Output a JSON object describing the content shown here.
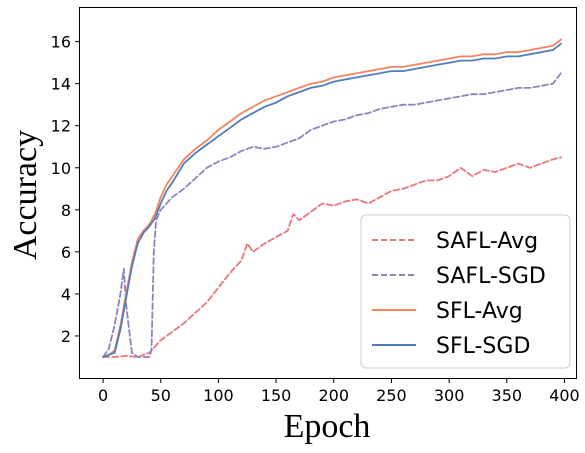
{
  "chart_data": {
    "type": "line",
    "xlabel": "Epoch",
    "ylabel": "Accuracy",
    "xlim": [
      -20,
      410
    ],
    "ylim": [
      0.0,
      17.6
    ],
    "xticks": [
      0,
      50,
      100,
      150,
      200,
      250,
      300,
      350,
      400
    ],
    "yticks": [
      2,
      4,
      6,
      8,
      10,
      12,
      14,
      16
    ],
    "grid": false,
    "legend_position": "lower-right",
    "series": [
      {
        "name": "SAFL-Avg",
        "color": "#e8777c",
        "dash": "dashed",
        "x": [
          0,
          10,
          20,
          30,
          40,
          45,
          50,
          60,
          70,
          80,
          90,
          100,
          110,
          120,
          125,
          130,
          140,
          150,
          160,
          165,
          170,
          180,
          190,
          200,
          210,
          220,
          230,
          240,
          250,
          260,
          270,
          280,
          290,
          300,
          310,
          320,
          330,
          340,
          350,
          360,
          370,
          380,
          390,
          397
        ],
        "y": [
          1.0,
          1.0,
          1.05,
          1.0,
          1.2,
          1.5,
          1.8,
          2.2,
          2.6,
          3.1,
          3.6,
          4.3,
          5.0,
          5.6,
          6.4,
          6.0,
          6.4,
          6.7,
          7.0,
          7.8,
          7.5,
          7.9,
          8.3,
          8.2,
          8.4,
          8.5,
          8.3,
          8.6,
          8.9,
          9.0,
          9.2,
          9.4,
          9.4,
          9.6,
          10.0,
          9.6,
          9.9,
          9.8,
          10.0,
          10.2,
          10.0,
          10.2,
          10.4,
          10.5
        ]
      },
      {
        "name": "SAFL-SGD",
        "color": "#8e84bd",
        "dash": "dashed",
        "x": [
          0,
          5,
          10,
          15,
          18,
          20,
          25,
          30,
          35,
          40,
          42,
          44,
          46,
          50,
          60,
          70,
          80,
          90,
          100,
          110,
          120,
          130,
          140,
          150,
          160,
          170,
          180,
          190,
          200,
          210,
          220,
          230,
          240,
          250,
          260,
          270,
          280,
          290,
          300,
          310,
          320,
          330,
          340,
          350,
          360,
          370,
          380,
          390,
          397
        ],
        "y": [
          1.0,
          1.4,
          2.5,
          4.0,
          5.2,
          3.5,
          1.2,
          1.0,
          1.0,
          1.0,
          1.3,
          6.0,
          7.5,
          8.0,
          8.6,
          9.0,
          9.5,
          10.0,
          10.3,
          10.5,
          10.8,
          11.0,
          10.9,
          11.0,
          11.2,
          11.4,
          11.8,
          12.0,
          12.2,
          12.3,
          12.5,
          12.6,
          12.8,
          12.9,
          13.0,
          13.0,
          13.1,
          13.2,
          13.3,
          13.4,
          13.5,
          13.5,
          13.6,
          13.7,
          13.8,
          13.8,
          13.9,
          14.0,
          14.5
        ]
      },
      {
        "name": "SFL-Avg",
        "color": "#f4845f",
        "dash": "solid",
        "x": [
          0,
          5,
          10,
          15,
          20,
          25,
          30,
          35,
          40,
          45,
          50,
          55,
          60,
          70,
          80,
          90,
          100,
          110,
          120,
          130,
          140,
          150,
          160,
          170,
          180,
          190,
          200,
          210,
          220,
          230,
          240,
          250,
          260,
          270,
          280,
          290,
          300,
          310,
          320,
          330,
          340,
          350,
          360,
          370,
          380,
          390,
          397
        ],
        "y": [
          1.0,
          1.1,
          1.3,
          2.5,
          4.0,
          5.5,
          6.6,
          7.0,
          7.3,
          7.8,
          8.6,
          9.2,
          9.6,
          10.4,
          10.9,
          11.3,
          11.8,
          12.2,
          12.6,
          12.9,
          13.2,
          13.4,
          13.6,
          13.8,
          14.0,
          14.1,
          14.3,
          14.4,
          14.5,
          14.6,
          14.7,
          14.8,
          14.8,
          14.9,
          15.0,
          15.1,
          15.2,
          15.3,
          15.3,
          15.4,
          15.4,
          15.5,
          15.5,
          15.6,
          15.7,
          15.8,
          16.1
        ]
      },
      {
        "name": "SFL-SGD",
        "color": "#4f7ebb",
        "dash": "solid",
        "x": [
          0,
          5,
          10,
          15,
          20,
          25,
          30,
          35,
          40,
          45,
          50,
          55,
          60,
          70,
          80,
          90,
          100,
          110,
          120,
          130,
          140,
          150,
          160,
          170,
          180,
          190,
          200,
          210,
          220,
          230,
          240,
          250,
          260,
          270,
          280,
          290,
          300,
          310,
          320,
          330,
          340,
          350,
          360,
          370,
          380,
          390,
          397
        ],
        "y": [
          1.0,
          1.1,
          1.2,
          2.3,
          3.8,
          5.3,
          6.4,
          6.9,
          7.2,
          7.6,
          8.3,
          8.9,
          9.3,
          10.2,
          10.7,
          11.1,
          11.5,
          11.9,
          12.3,
          12.6,
          12.9,
          13.1,
          13.4,
          13.6,
          13.8,
          13.9,
          14.1,
          14.2,
          14.3,
          14.4,
          14.5,
          14.6,
          14.6,
          14.7,
          14.8,
          14.9,
          15.0,
          15.1,
          15.1,
          15.2,
          15.2,
          15.3,
          15.3,
          15.4,
          15.5,
          15.6,
          15.9
        ]
      }
    ]
  }
}
